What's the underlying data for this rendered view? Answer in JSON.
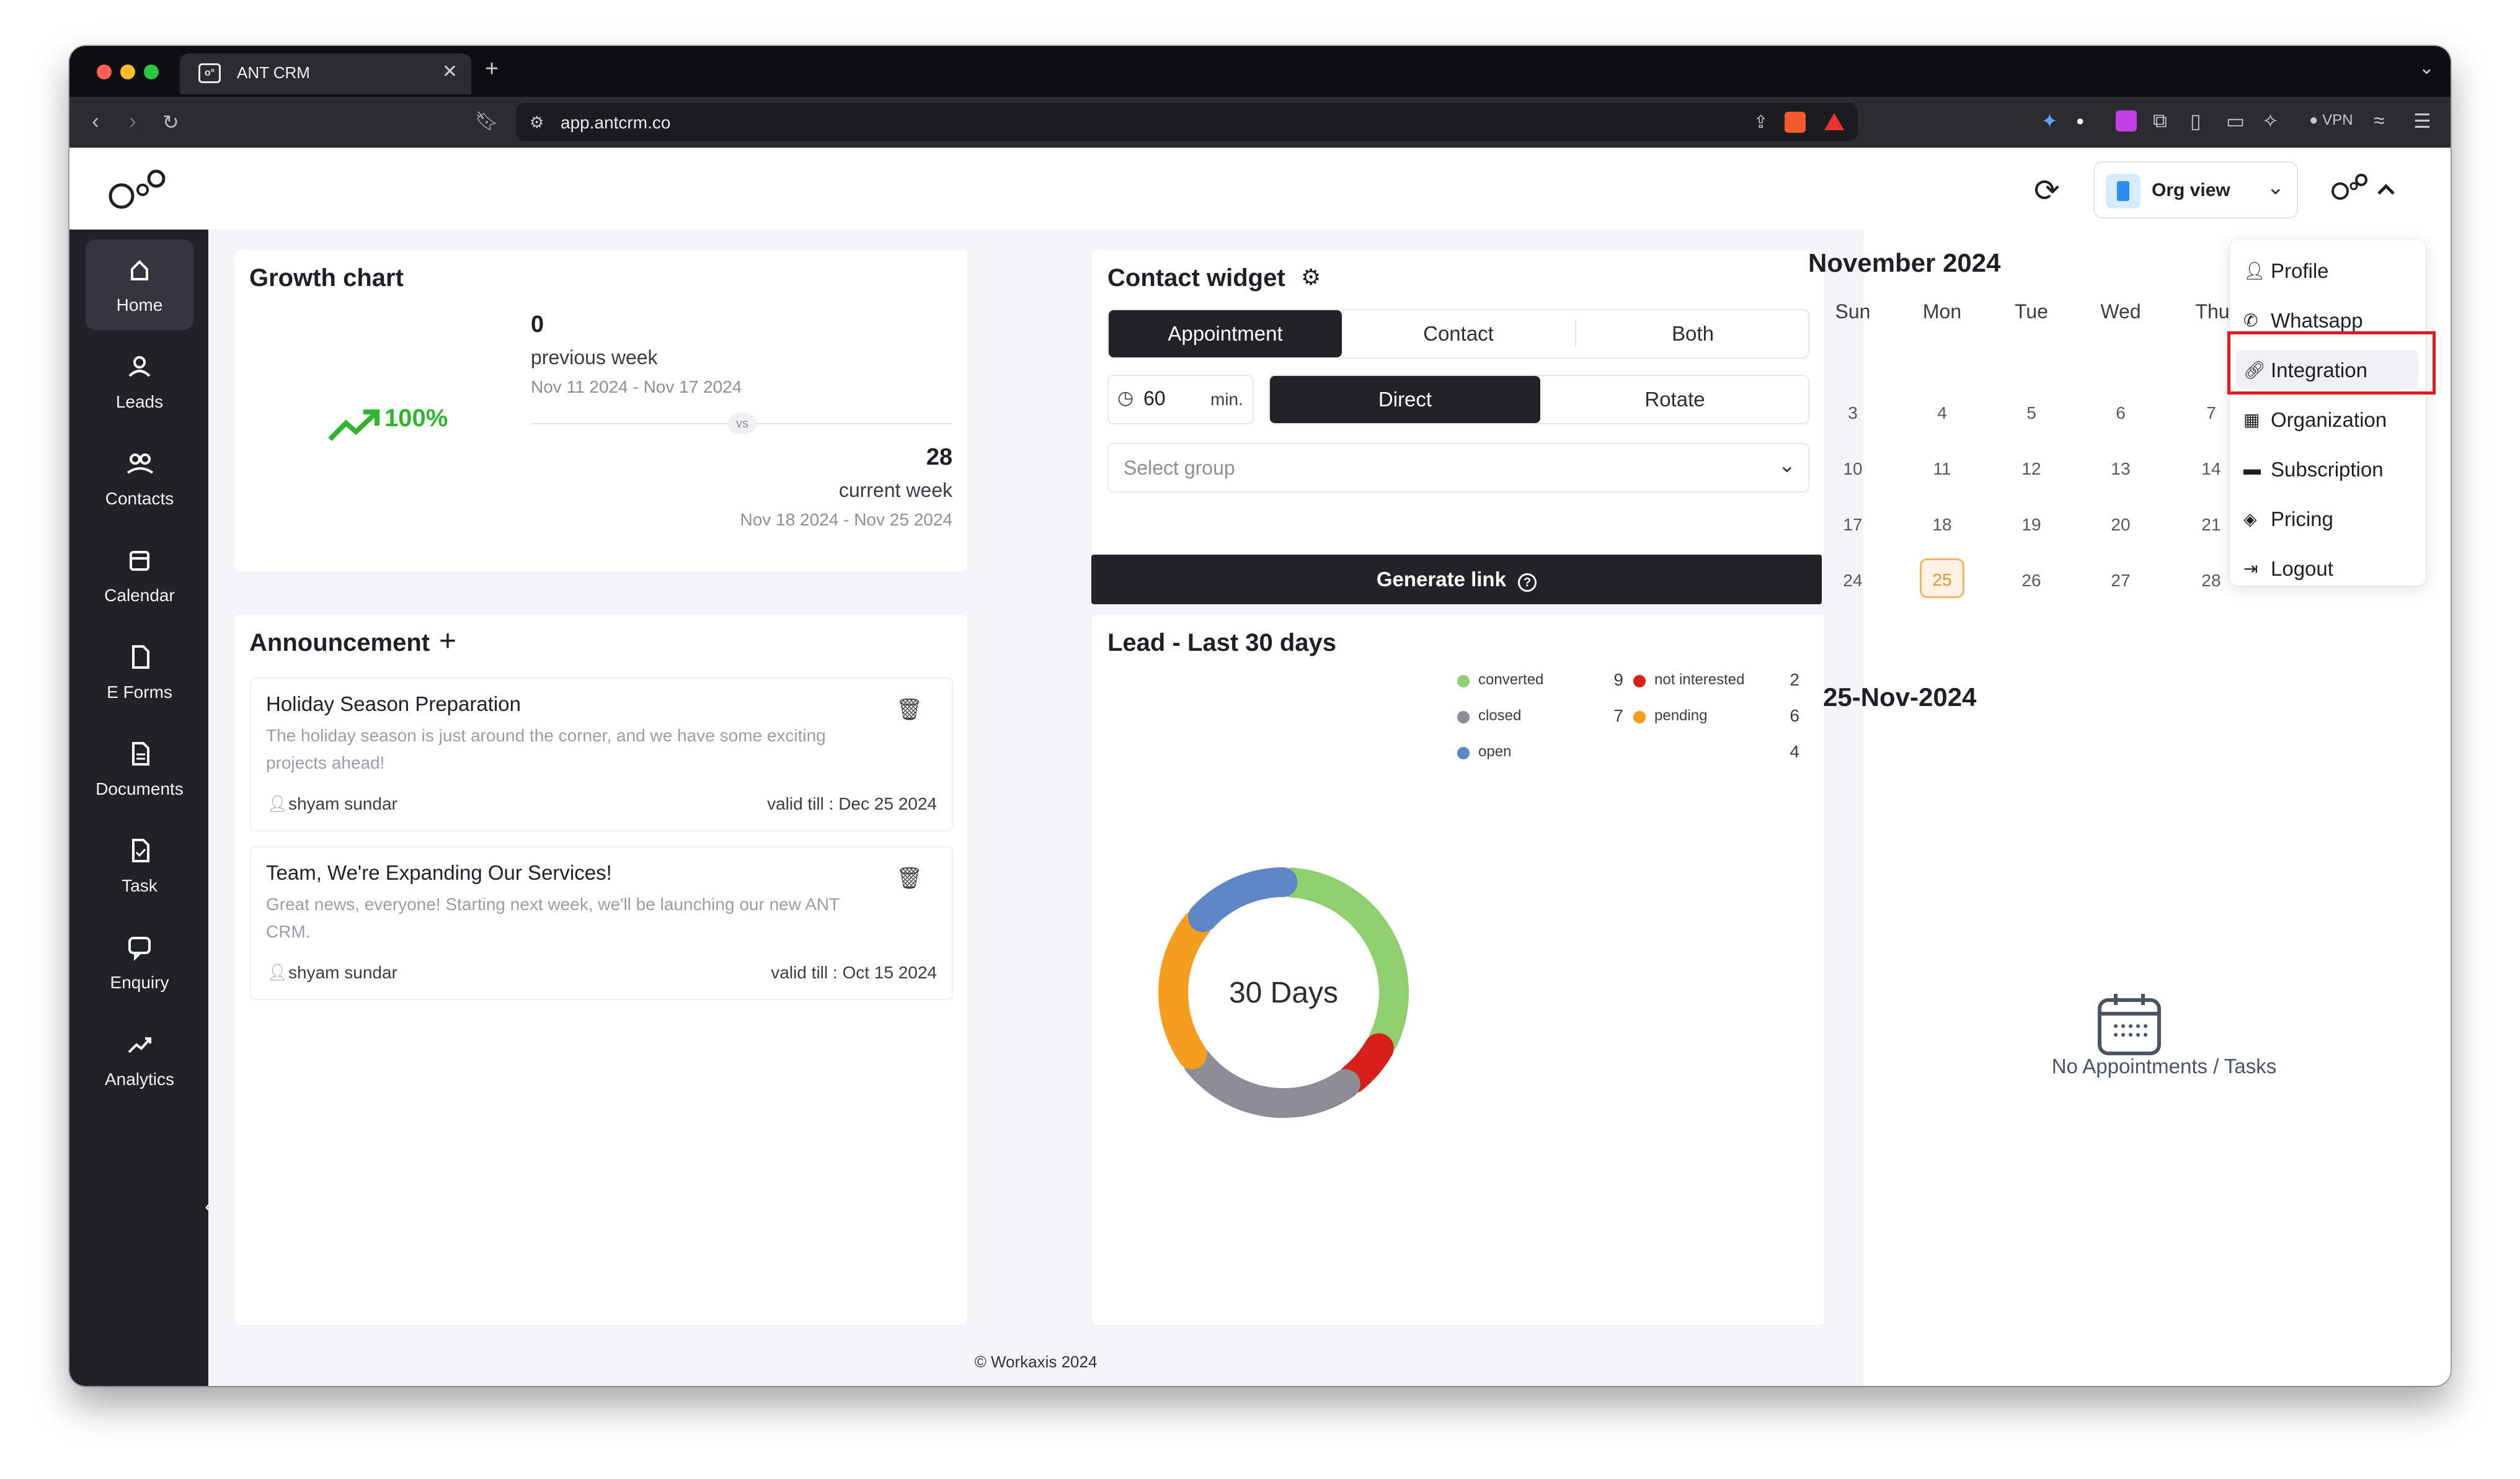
{
  "browser": {
    "tab_title": "ANT CRM",
    "url": "app.antcrm.co",
    "vpn_label": "VPN"
  },
  "header": {
    "org_view_label": "Org view"
  },
  "sidebar": {
    "items": [
      {
        "label": "Home",
        "icon": "home-icon",
        "active": true
      },
      {
        "label": "Leads",
        "icon": "leads-icon"
      },
      {
        "label": "Contacts",
        "icon": "contacts-icon"
      },
      {
        "label": "Calendar",
        "icon": "calendar-icon"
      },
      {
        "label": "E Forms",
        "icon": "eforms-icon"
      },
      {
        "label": "Documents",
        "icon": "documents-icon"
      },
      {
        "label": "Task",
        "icon": "task-icon"
      },
      {
        "label": "Enquiry",
        "icon": "enquiry-icon"
      },
      {
        "label": "Analytics",
        "icon": "analytics-icon"
      }
    ]
  },
  "growth": {
    "title": "Growth chart",
    "percent": "100%",
    "previous_value": "0",
    "previous_label": "previous week",
    "previous_range": "Nov 11 2024 - Nov 17 2024",
    "vs": "vs",
    "current_value": "28",
    "current_label": "current week",
    "current_range": "Nov 18 2024 - Nov 25 2024"
  },
  "contact_widget": {
    "title": "Contact widget",
    "tabs": [
      "Appointment",
      "Contact",
      "Both"
    ],
    "active_tab": "Appointment",
    "duration": "60",
    "duration_unit": "min.",
    "modes": [
      "Direct",
      "Rotate"
    ],
    "active_mode": "Direct",
    "group_placeholder": "Select group",
    "generate_label": "Generate link"
  },
  "announcement": {
    "title": "Announcement",
    "items": [
      {
        "title": "Holiday Season Preparation",
        "body": "The holiday season is just around the corner, and we have some exciting projects ahead!",
        "author": "shyam sundar",
        "valid": "valid till : Dec 25 2024"
      },
      {
        "title": "Team, We're Expanding Our Services!",
        "body": "Great news, everyone! Starting next week, we'll be launching our new ANT CRM.",
        "author": "shyam sundar",
        "valid": "valid till : Oct 15 2024"
      }
    ]
  },
  "leads": {
    "title": "Lead - Last 30 days",
    "center_label": "30 Days",
    "legend": [
      {
        "label": "converted",
        "value": "9",
        "color": "#8fcf6f"
      },
      {
        "label": "not interested",
        "value": "2",
        "color": "#d7201a"
      },
      {
        "label": "closed",
        "value": "7",
        "color": "#8a8d93"
      },
      {
        "label": "pending",
        "value": "6",
        "color": "#f59d1f"
      },
      {
        "label": "open",
        "value": "4",
        "color": "#5f86c6"
      }
    ]
  },
  "chart_data": {
    "type": "pie",
    "title": "Lead - Last 30 days",
    "categories": [
      "converted",
      "not interested",
      "closed",
      "pending",
      "open"
    ],
    "values": [
      9,
      2,
      7,
      6,
      4
    ]
  },
  "calendar": {
    "month": "November 2024",
    "dow": [
      "Sun",
      "Mon",
      "Tue",
      "Wed",
      "Thu"
    ],
    "weeks": [
      [
        "3",
        "4",
        "5",
        "6",
        "7"
      ],
      [
        "10",
        "11",
        "12",
        "13",
        "14"
      ],
      [
        "17",
        "18",
        "19",
        "20",
        "21"
      ],
      [
        "24",
        "25",
        "26",
        "27",
        "28"
      ]
    ],
    "today": "25",
    "selected_date": "25-Nov-2024",
    "empty_message": "No Appointments / Tasks"
  },
  "user_menu": {
    "items": [
      {
        "label": "Profile",
        "icon": "profile-icon"
      },
      {
        "label": "Whatsapp",
        "icon": "whatsapp-icon"
      },
      {
        "label": "Integration",
        "icon": "link-icon",
        "highlighted": true
      },
      {
        "label": "Organization",
        "icon": "building-icon"
      },
      {
        "label": "Subscription",
        "icon": "card-icon"
      },
      {
        "label": "Pricing",
        "icon": "pricing-icon"
      },
      {
        "label": "Logout",
        "icon": "logout-icon"
      }
    ]
  },
  "footer": {
    "text": "© Workaxis 2024"
  }
}
